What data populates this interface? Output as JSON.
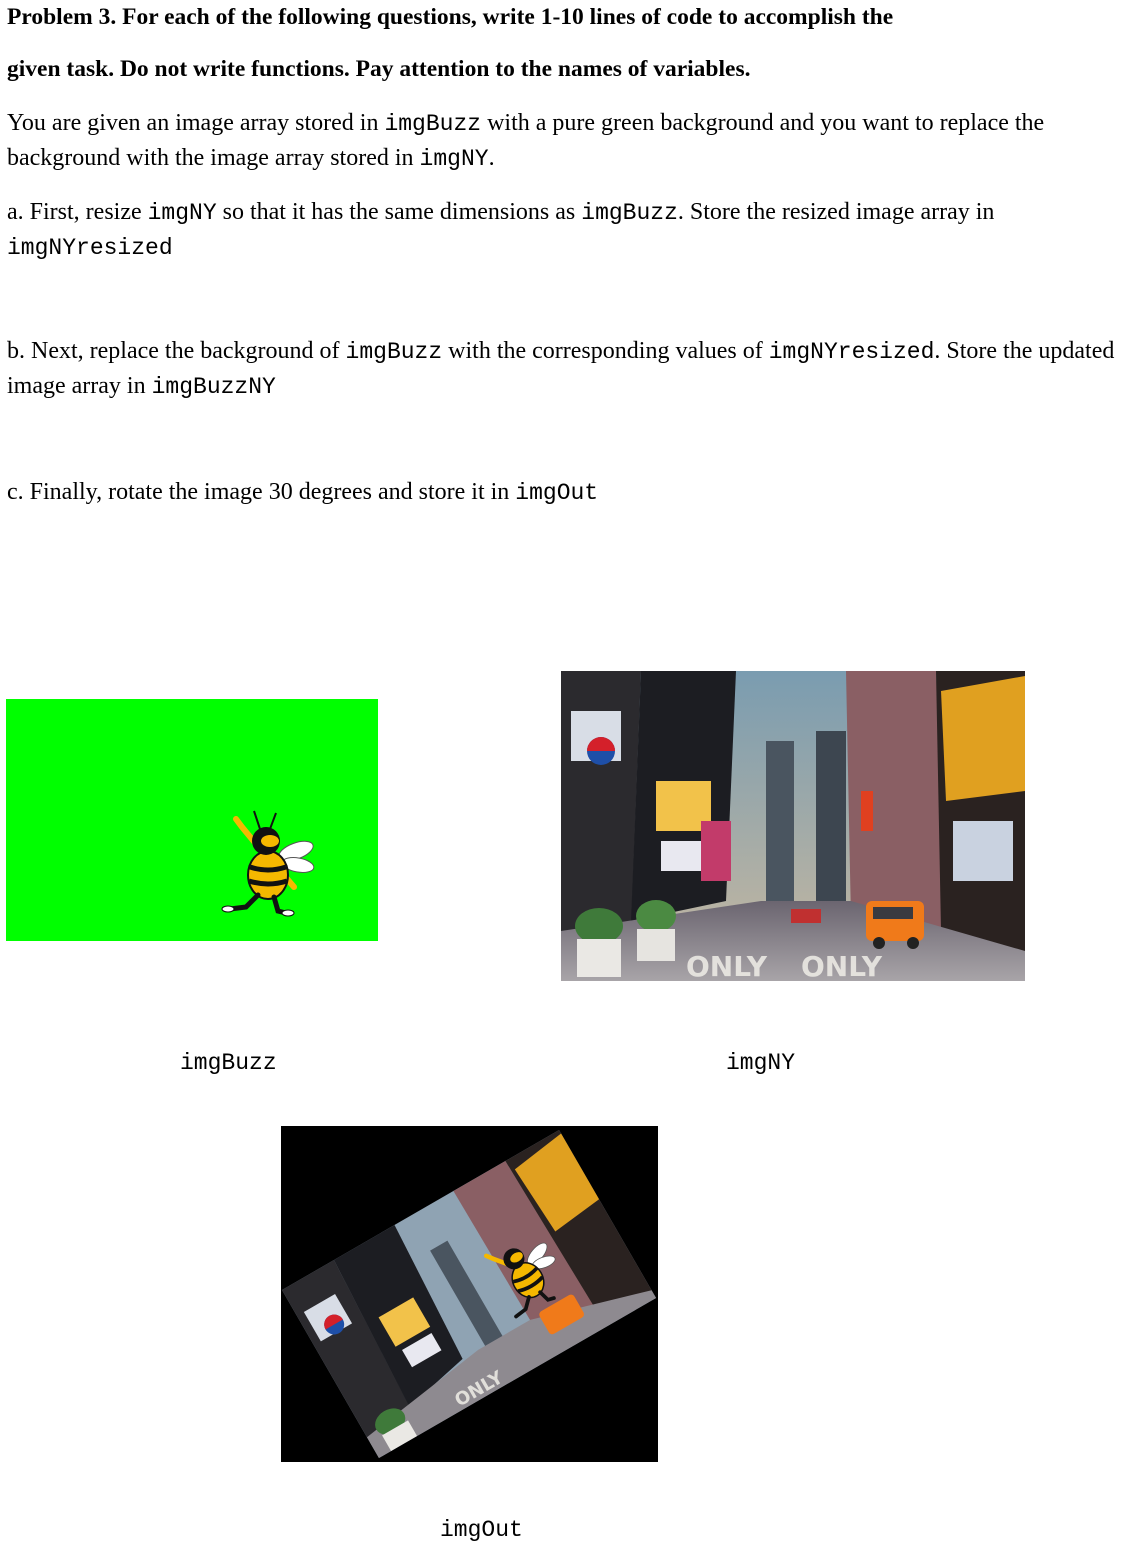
{
  "problem": {
    "title_line1": "Problem 3. For each of the following questions, write 1-10 lines of code to accomplish the",
    "title_line2": "given task. Do not write functions. Pay attention to the names of variables."
  },
  "intro": {
    "t1": "You are given an image array stored in ",
    "v1": "imgBuzz",
    "t2": " with a pure green background and you want to replace the background with the image array stored in ",
    "v2": "imgNY",
    "t3": "."
  },
  "part_a": {
    "t1": "a. First, resize ",
    "v1": "imgNY",
    "t2": " so that it has the same dimensions as ",
    "v2": "imgBuzz",
    "t3": ". Store the resized image array in ",
    "v3": "imgNYresized"
  },
  "part_b": {
    "t1": "b. Next, replace the background of ",
    "v1": "imgBuzz",
    "t2": " with the corresponding values of ",
    "v2": "imgNYresized",
    "t3": ". Store the updated image array in ",
    "v3": "imgBuzzNY"
  },
  "part_c": {
    "t1": "c. Finally, rotate the image 30 degrees and store it in ",
    "v1": "imgOut"
  },
  "figures": {
    "buzz_caption": "imgBuzz",
    "ny_caption": "imgNY",
    "out_caption": "imgOut"
  },
  "colors": {
    "green_screen": "#00ff00",
    "black_bg": "#000000"
  }
}
